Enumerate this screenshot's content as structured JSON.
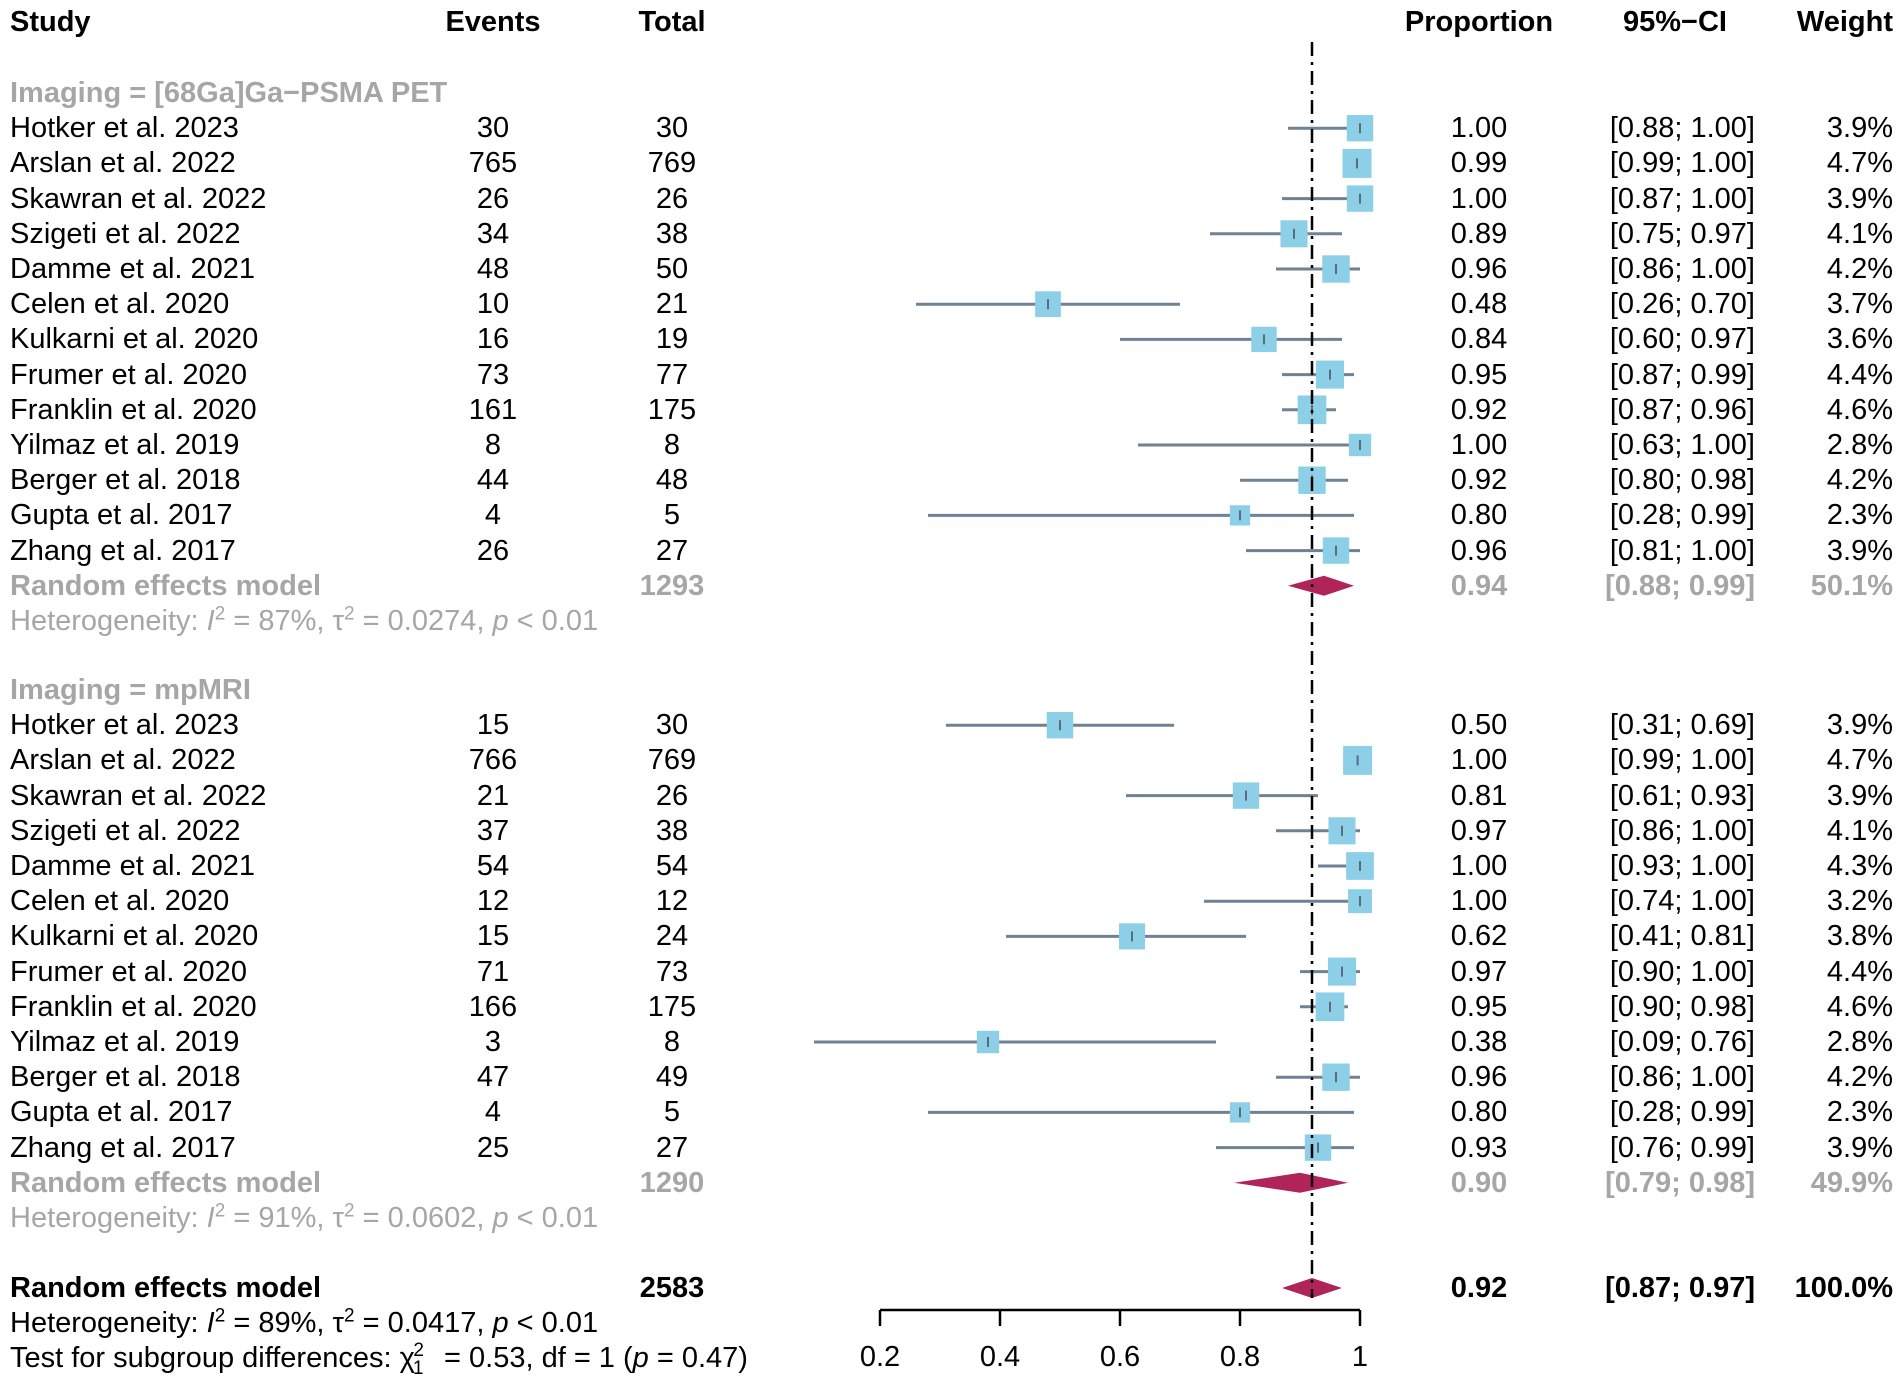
{
  "chart_data": {
    "type": "forest",
    "headers": {
      "study": "Study",
      "events": "Events",
      "total": "Total",
      "proportion": "Proportion",
      "ci": "95%−CI",
      "weight": "Weight"
    },
    "xaxis": {
      "ticks": [
        0.2,
        0.4,
        0.6,
        0.8,
        1
      ],
      "tick_labels": [
        "0.2",
        "0.4",
        "0.6",
        "0.8",
        "1"
      ],
      "range": [
        0.2,
        1
      ],
      "reference_line": 0.92
    },
    "groups": [
      {
        "label": "Imaging = [68Ga]Ga−PSMA PET",
        "studies": [
          {
            "study": "Hotker et al. 2023",
            "events": "30",
            "total": "30",
            "proportion": "1.00",
            "ci": "[0.88; 1.00]",
            "weight": "3.9%",
            "est": 1.0,
            "lo": 0.88,
            "hi": 1.0,
            "w": 3.9
          },
          {
            "study": "Arslan et al. 2022",
            "events": "765",
            "total": "769",
            "proportion": "0.99",
            "ci": "[0.99; 1.00]",
            "weight": "4.7%",
            "est": 0.995,
            "lo": 0.99,
            "hi": 1.0,
            "w": 4.7
          },
          {
            "study": "Skawran et al. 2022",
            "events": "26",
            "total": "26",
            "proportion": "1.00",
            "ci": "[0.87; 1.00]",
            "weight": "3.9%",
            "est": 1.0,
            "lo": 0.87,
            "hi": 1.0,
            "w": 3.9
          },
          {
            "study": "Szigeti et al. 2022",
            "events": "34",
            "total": "38",
            "proportion": "0.89",
            "ci": "[0.75; 0.97]",
            "weight": "4.1%",
            "est": 0.89,
            "lo": 0.75,
            "hi": 0.97,
            "w": 4.1
          },
          {
            "study": "Damme et al. 2021",
            "events": "48",
            "total": "50",
            "proportion": "0.96",
            "ci": "[0.86; 1.00]",
            "weight": "4.2%",
            "est": 0.96,
            "lo": 0.86,
            "hi": 1.0,
            "w": 4.2
          },
          {
            "study": "Celen et al. 2020",
            "events": "10",
            "total": "21",
            "proportion": "0.48",
            "ci": "[0.26; 0.70]",
            "weight": "3.7%",
            "est": 0.48,
            "lo": 0.26,
            "hi": 0.7,
            "w": 3.7
          },
          {
            "study": "Kulkarni et al. 2020",
            "events": "16",
            "total": "19",
            "proportion": "0.84",
            "ci": "[0.60; 0.97]",
            "weight": "3.6%",
            "est": 0.84,
            "lo": 0.6,
            "hi": 0.97,
            "w": 3.6
          },
          {
            "study": "Frumer et al. 2020",
            "events": "73",
            "total": "77",
            "proportion": "0.95",
            "ci": "[0.87; 0.99]",
            "weight": "4.4%",
            "est": 0.95,
            "lo": 0.87,
            "hi": 0.99,
            "w": 4.4
          },
          {
            "study": "Franklin et al. 2020",
            "events": "161",
            "total": "175",
            "proportion": "0.92",
            "ci": "[0.87; 0.96]",
            "weight": "4.6%",
            "est": 0.92,
            "lo": 0.87,
            "hi": 0.96,
            "w": 4.6
          },
          {
            "study": "Yilmaz et al. 2019",
            "events": "8",
            "total": "8",
            "proportion": "1.00",
            "ci": "[0.63; 1.00]",
            "weight": "2.8%",
            "est": 1.0,
            "lo": 0.63,
            "hi": 1.0,
            "w": 2.8
          },
          {
            "study": "Berger et al. 2018",
            "events": "44",
            "total": "48",
            "proportion": "0.92",
            "ci": "[0.80; 0.98]",
            "weight": "4.2%",
            "est": 0.92,
            "lo": 0.8,
            "hi": 0.98,
            "w": 4.2
          },
          {
            "study": "Gupta et al. 2017",
            "events": "4",
            "total": "5",
            "proportion": "0.80",
            "ci": "[0.28; 0.99]",
            "weight": "2.3%",
            "est": 0.8,
            "lo": 0.28,
            "hi": 0.99,
            "w": 2.3
          },
          {
            "study": "Zhang et al. 2017",
            "events": "26",
            "total": "27",
            "proportion": "0.96",
            "ci": "[0.81; 1.00]",
            "weight": "3.9%",
            "est": 0.96,
            "lo": 0.81,
            "hi": 1.0,
            "w": 3.9
          }
        ],
        "summary": {
          "label": "Random effects model",
          "total": "1293",
          "proportion": "0.94",
          "ci": "[0.88; 0.99]",
          "weight": "50.1%",
          "est": 0.94,
          "lo": 0.88,
          "hi": 0.99
        },
        "heterogeneity": {
          "prefix": "Heterogeneity: ",
          "I": "I",
          "i2": " = 87%, ",
          "tau": "τ",
          "tau2": " = 0.0274, ",
          "p": "p",
          "pval": " < 0.01"
        }
      },
      {
        "label": "Imaging = mpMRI",
        "studies": [
          {
            "study": "Hotker et al. 2023",
            "events": "15",
            "total": "30",
            "proportion": "0.50",
            "ci": "[0.31; 0.69]",
            "weight": "3.9%",
            "est": 0.5,
            "lo": 0.31,
            "hi": 0.69,
            "w": 3.9
          },
          {
            "study": "Arslan et al. 2022",
            "events": "766",
            "total": "769",
            "proportion": "1.00",
            "ci": "[0.99; 1.00]",
            "weight": "4.7%",
            "est": 0.996,
            "lo": 0.99,
            "hi": 1.0,
            "w": 4.7
          },
          {
            "study": "Skawran et al. 2022",
            "events": "21",
            "total": "26",
            "proportion": "0.81",
            "ci": "[0.61; 0.93]",
            "weight": "3.9%",
            "est": 0.81,
            "lo": 0.61,
            "hi": 0.93,
            "w": 3.9
          },
          {
            "study": "Szigeti et al. 2022",
            "events": "37",
            "total": "38",
            "proportion": "0.97",
            "ci": "[0.86; 1.00]",
            "weight": "4.1%",
            "est": 0.97,
            "lo": 0.86,
            "hi": 1.0,
            "w": 4.1
          },
          {
            "study": "Damme et al. 2021",
            "events": "54",
            "total": "54",
            "proportion": "1.00",
            "ci": "[0.93; 1.00]",
            "weight": "4.3%",
            "est": 1.0,
            "lo": 0.93,
            "hi": 1.0,
            "w": 4.3
          },
          {
            "study": "Celen et al. 2020",
            "events": "12",
            "total": "12",
            "proportion": "1.00",
            "ci": "[0.74; 1.00]",
            "weight": "3.2%",
            "est": 1.0,
            "lo": 0.74,
            "hi": 1.0,
            "w": 3.2
          },
          {
            "study": "Kulkarni et al. 2020",
            "events": "15",
            "total": "24",
            "proportion": "0.62",
            "ci": "[0.41; 0.81]",
            "weight": "3.8%",
            "est": 0.62,
            "lo": 0.41,
            "hi": 0.81,
            "w": 3.8
          },
          {
            "study": "Frumer et al. 2020",
            "events": "71",
            "total": "73",
            "proportion": "0.97",
            "ci": "[0.90; 1.00]",
            "weight": "4.4%",
            "est": 0.97,
            "lo": 0.9,
            "hi": 1.0,
            "w": 4.4
          },
          {
            "study": "Franklin et al. 2020",
            "events": "166",
            "total": "175",
            "proportion": "0.95",
            "ci": "[0.90; 0.98]",
            "weight": "4.6%",
            "est": 0.95,
            "lo": 0.9,
            "hi": 0.98,
            "w": 4.6
          },
          {
            "study": "Yilmaz et al. 2019",
            "events": "3",
            "total": "8",
            "proportion": "0.38",
            "ci": "[0.09; 0.76]",
            "weight": "2.8%",
            "est": 0.38,
            "lo": 0.09,
            "hi": 0.76,
            "w": 2.8
          },
          {
            "study": "Berger et al. 2018",
            "events": "47",
            "total": "49",
            "proportion": "0.96",
            "ci": "[0.86; 1.00]",
            "weight": "4.2%",
            "est": 0.96,
            "lo": 0.86,
            "hi": 1.0,
            "w": 4.2
          },
          {
            "study": "Gupta et al. 2017",
            "events": "4",
            "total": "5",
            "proportion": "0.80",
            "ci": "[0.28; 0.99]",
            "weight": "2.3%",
            "est": 0.8,
            "lo": 0.28,
            "hi": 0.99,
            "w": 2.3
          },
          {
            "study": "Zhang et al. 2017",
            "events": "25",
            "total": "27",
            "proportion": "0.93",
            "ci": "[0.76; 0.99]",
            "weight": "3.9%",
            "est": 0.93,
            "lo": 0.76,
            "hi": 0.99,
            "w": 3.9
          }
        ],
        "summary": {
          "label": "Random effects model",
          "total": "1290",
          "proportion": "0.90",
          "ci": "[0.79; 0.98]",
          "weight": "49.9%",
          "est": 0.9,
          "lo": 0.79,
          "hi": 0.98
        },
        "heterogeneity": {
          "prefix": "Heterogeneity: ",
          "I": "I",
          "i2": " = 91%, ",
          "tau": "τ",
          "tau2": " = 0.0602, ",
          "p": "p",
          "pval": " < 0.01"
        }
      }
    ],
    "overall": {
      "summary": {
        "label": "Random effects model",
        "total": "2583",
        "proportion": "0.92",
        "ci": "[0.87; 0.97]",
        "weight": "100.0%",
        "est": 0.92,
        "lo": 0.87,
        "hi": 0.97
      },
      "heterogeneity": {
        "prefix": "Heterogeneity: ",
        "I": "I",
        "i2": " = 89%, ",
        "tau": "τ",
        "tau2": " = 0.0417, ",
        "p": "p",
        "pval": " < 0.01"
      },
      "subgroup_test": {
        "prefix": "Test for subgroup differences: ",
        "chi": "χ",
        "sub": "1",
        "sup": "2",
        "mid": " = 0.53, df = 1 (",
        "p": "p",
        "pval": " = 0.47)"
      }
    },
    "colors": {
      "square": "#8ecfe8",
      "ci_line": "#6e8294",
      "diamond": "#b0245a",
      "grey_text": "#a6a6a6",
      "ref_line": "#000000"
    }
  }
}
